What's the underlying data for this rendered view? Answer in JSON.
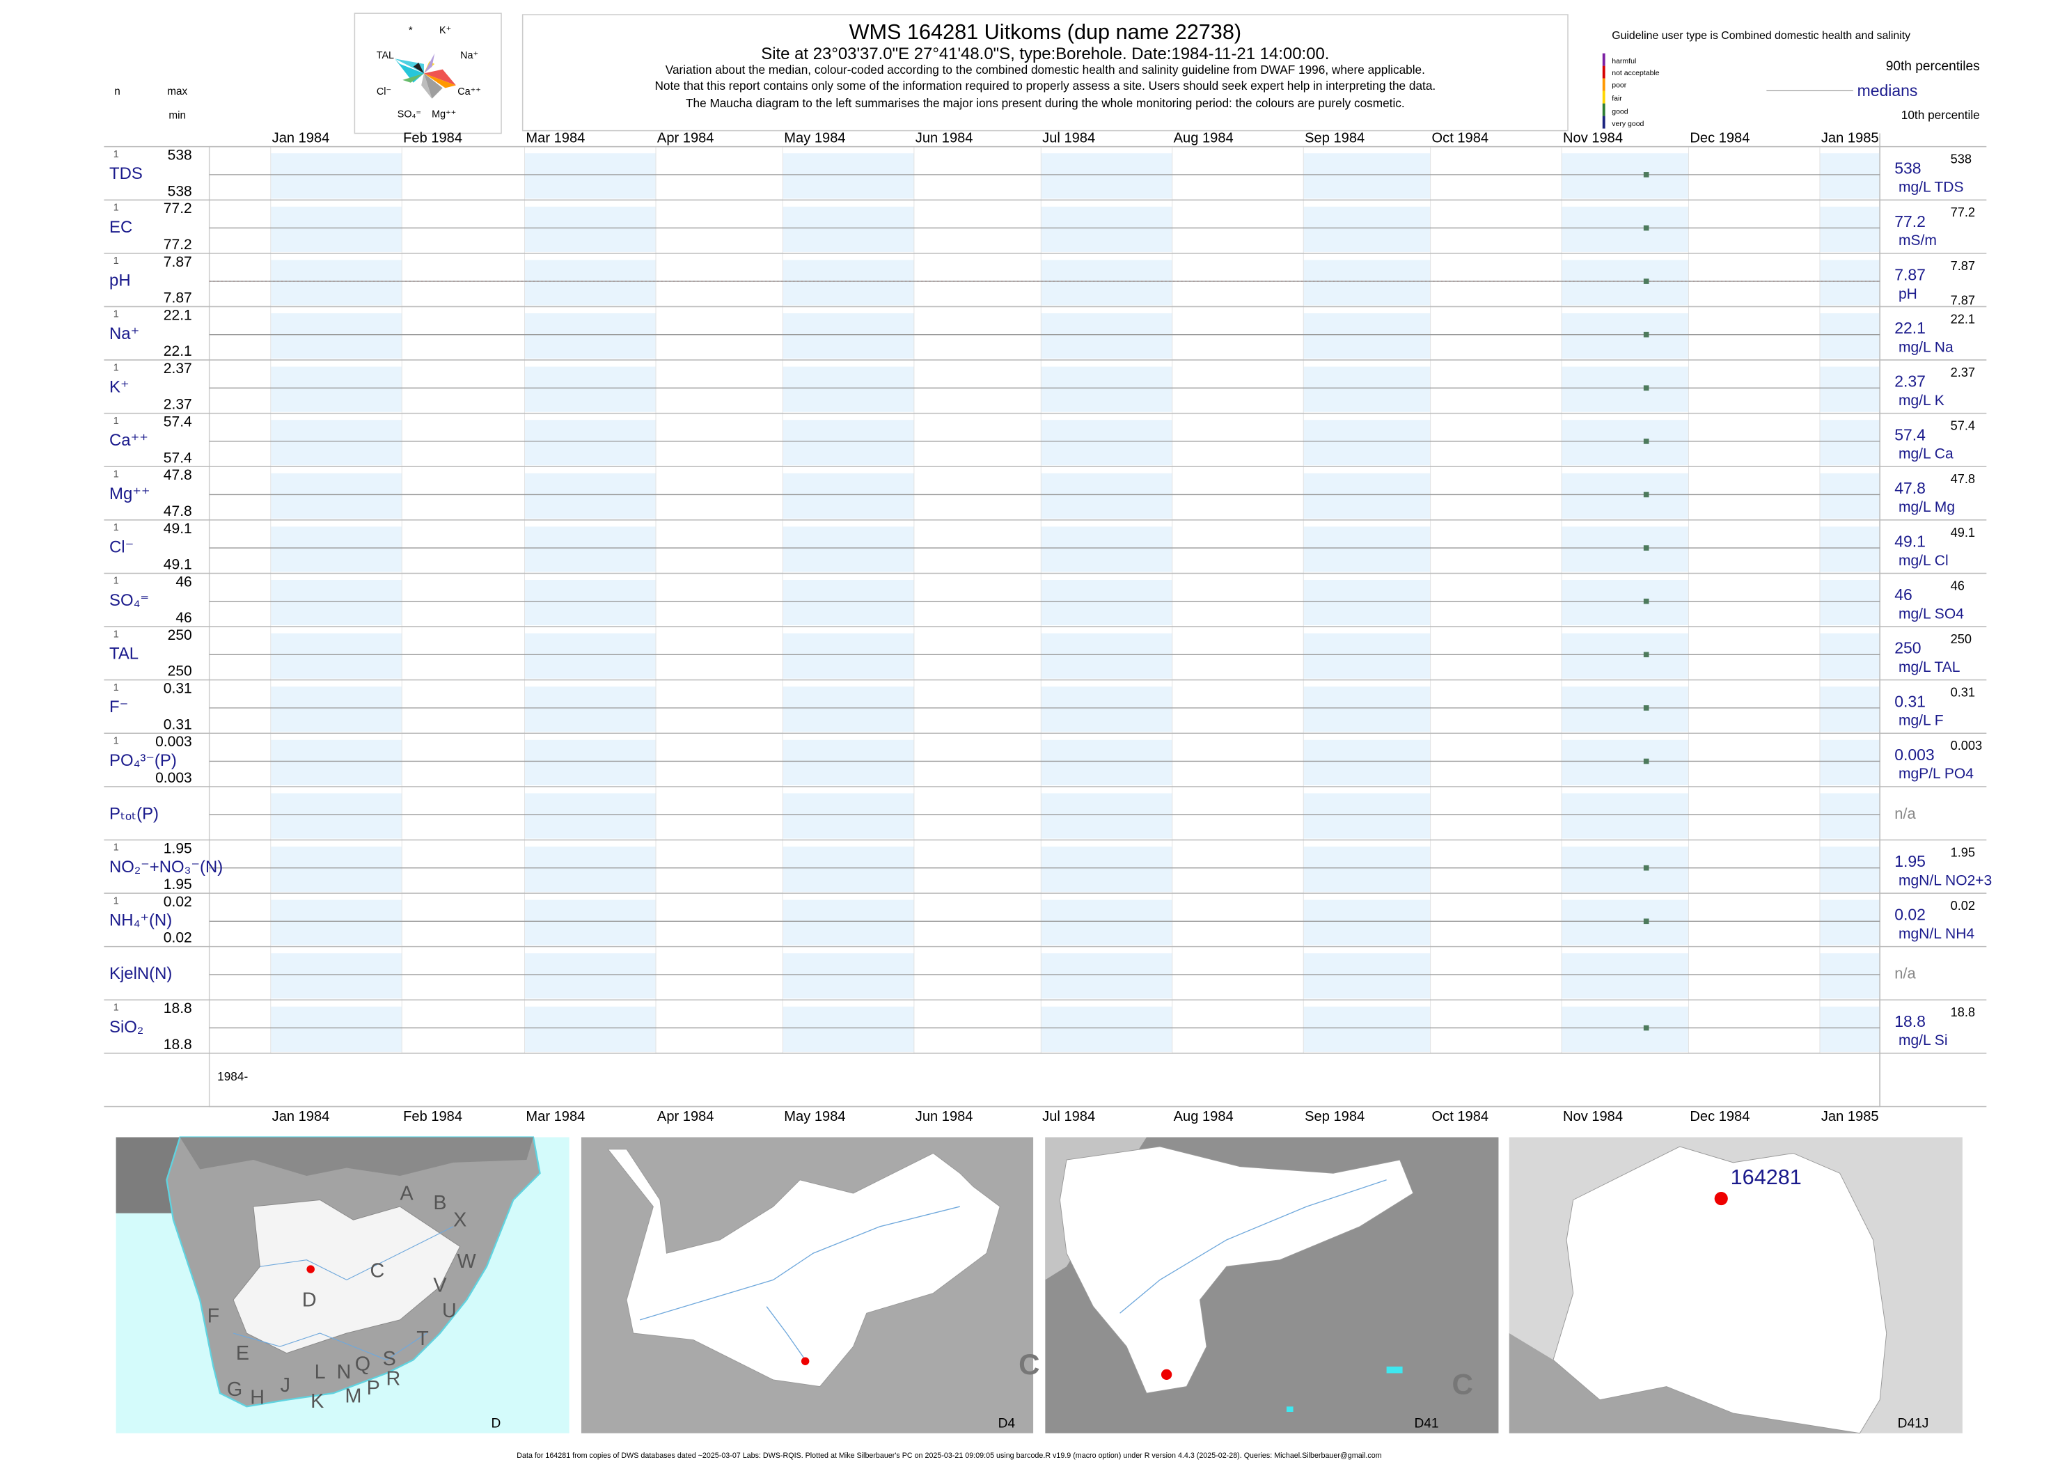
{
  "header": {
    "title": "WMS 164281  Uitkoms (dup name 22738)",
    "site": "Site at 23°03'37.0\"E 27°41'48.0\"S, type:Borehole. Date:1984-11-21 14:00:00.",
    "lines": [
      "Variation about the median,  colour-coded according to the combined domestic health and salinity guideline from DWAF 1996, where applicable.",
      "Note that this report contains only some of the information required to properly assess a site. Users should seek expert help in interpreting the data.",
      "The Maucha diagram to the left summarises the major ions present during the whole monitoring period: the colours are purely cosmetic."
    ]
  },
  "maucha": {
    "labels": [
      "*",
      "K⁺",
      "TAL",
      "Na⁺",
      "Cl⁻",
      "Ca⁺⁺",
      "SO₄⁼",
      "Mg⁺⁺"
    ]
  },
  "column_heads": {
    "n": "n",
    "max": "max",
    "min": "min"
  },
  "legend": {
    "guideline": "Guideline user type is Combined domestic health and salinity",
    "classes": [
      "harmful",
      "not acceptable",
      "poor",
      "fair",
      "good",
      "very good"
    ],
    "p90": "90th percentiles",
    "median": "medians",
    "p10": "10th percentile"
  },
  "time_axis": {
    "ticks": [
      {
        "value": "1984-01",
        "label": "Jan 1984"
      },
      {
        "value": "1984-02",
        "label": "Feb 1984"
      },
      {
        "value": "1984-03",
        "label": "Mar 1984"
      },
      {
        "value": "1984-04",
        "label": "Apr 1984"
      },
      {
        "value": "1984-05",
        "label": "May 1984"
      },
      {
        "value": "1984-06",
        "label": "Jun 1984"
      },
      {
        "value": "1984-07",
        "label": "Jul 1984"
      },
      {
        "value": "1984-08",
        "label": "Aug 1984"
      },
      {
        "value": "1984-09",
        "label": "Sep 1984"
      },
      {
        "value": "1984-10",
        "label": "Oct 1984"
      },
      {
        "value": "1984-11",
        "label": "Nov 1984"
      },
      {
        "value": "1984-12",
        "label": "Dec 1984"
      },
      {
        "value": "1985-01",
        "label": "Jan 1985"
      }
    ],
    "start_label": "1984-"
  },
  "chart_data": [
    {
      "type": "scatter",
      "label": "TDS",
      "n": 1,
      "max": 538,
      "min": 538,
      "median": 538,
      "p90": 538,
      "unit": "mg/L TDS",
      "x": [
        "1984-11-21"
      ],
      "values": [
        538
      ]
    },
    {
      "type": "scatter",
      "label": "EC",
      "n": 1,
      "max": 77.2,
      "min": 77.2,
      "median": 77.2,
      "p90": 77.2,
      "unit": "mS/m",
      "x": [
        "1984-11-21"
      ],
      "values": [
        77.2
      ]
    },
    {
      "type": "scatter",
      "label": "pH",
      "n": 1,
      "max": 7.87,
      "min": 7.87,
      "median": 7.87,
      "p90": 7.87,
      "p10": 7.87,
      "unit": "pH",
      "x": [
        "1984-11-21"
      ],
      "values": [
        7.87
      ]
    },
    {
      "type": "scatter",
      "label": "Na⁺",
      "n": 1,
      "max": 22.1,
      "min": 22.1,
      "median": 22.1,
      "p90": 22.1,
      "unit": "mg/L Na",
      "x": [
        "1984-11-21"
      ],
      "values": [
        22.1
      ]
    },
    {
      "type": "scatter",
      "label": "K⁺",
      "n": 1,
      "max": 2.37,
      "min": 2.37,
      "median": 2.37,
      "p90": 2.37,
      "unit": "mg/L K",
      "x": [
        "1984-11-21"
      ],
      "values": [
        2.37
      ]
    },
    {
      "type": "scatter",
      "label": "Ca⁺⁺",
      "n": 1,
      "max": 57.4,
      "min": 57.4,
      "median": 57.4,
      "p90": 57.4,
      "unit": "mg/L Ca",
      "x": [
        "1984-11-21"
      ],
      "values": [
        57.4
      ]
    },
    {
      "type": "scatter",
      "label": "Mg⁺⁺",
      "n": 1,
      "max": 47.8,
      "min": 47.8,
      "median": 47.8,
      "p90": 47.8,
      "unit": "mg/L Mg",
      "x": [
        "1984-11-21"
      ],
      "values": [
        47.8
      ]
    },
    {
      "type": "scatter",
      "label": "Cl⁻",
      "n": 1,
      "max": 49.1,
      "min": 49.1,
      "median": 49.1,
      "p90": 49.1,
      "unit": "mg/L Cl",
      "x": [
        "1984-11-21"
      ],
      "values": [
        49.1
      ]
    },
    {
      "type": "scatter",
      "label": "SO₄⁼",
      "n": 1,
      "max": 46,
      "min": 46,
      "median": 46,
      "p90": 46,
      "unit": "mg/L SO4",
      "x": [
        "1984-11-21"
      ],
      "values": [
        46
      ]
    },
    {
      "type": "scatter",
      "label": "TAL",
      "n": 1,
      "max": 250,
      "min": 250,
      "median": 250,
      "p90": 250,
      "unit": "mg/L TAL",
      "x": [
        "1984-11-21"
      ],
      "values": [
        250
      ]
    },
    {
      "type": "scatter",
      "label": "F⁻",
      "n": 1,
      "max": 0.31,
      "min": 0.31,
      "median": 0.31,
      "p90": 0.31,
      "unit": "mg/L F",
      "x": [
        "1984-11-21"
      ],
      "values": [
        0.31
      ]
    },
    {
      "type": "scatter",
      "label": "PO₄³⁻(P)",
      "n": 1,
      "max": 0.003,
      "min": 0.003,
      "median": 0.003,
      "p90": 0.003,
      "unit": "mgP/L PO4",
      "x": [
        "1984-11-21"
      ],
      "values": [
        0.003
      ]
    },
    {
      "type": "scatter",
      "label": "Pₜₒₜ(P)",
      "status": "n/a",
      "x": [],
      "values": []
    },
    {
      "type": "scatter",
      "label": "NO₂⁻+NO₃⁻(N)",
      "n": 1,
      "max": 1.95,
      "min": 1.95,
      "median": 1.95,
      "p90": 1.95,
      "unit": "mgN/L NO2+3",
      "x": [
        "1984-11-21"
      ],
      "values": [
        1.95
      ]
    },
    {
      "type": "scatter",
      "label": "NH₄⁺(N)",
      "n": 1,
      "max": 0.02,
      "min": 0.02,
      "median": 0.02,
      "p90": 0.02,
      "unit": "mgN/L NH4",
      "x": [
        "1984-11-21"
      ],
      "values": [
        0.02
      ]
    },
    {
      "type": "scatter",
      "label": "KjelN(N)",
      "status": "n/a",
      "x": [],
      "values": []
    },
    {
      "type": "scatter",
      "label": "SiO₂",
      "n": 1,
      "max": 18.8,
      "min": 18.8,
      "median": 18.8,
      "p90": 18.8,
      "unit": "mg/L Si",
      "x": [
        "1984-11-21"
      ],
      "values": [
        18.8
      ]
    }
  ],
  "maps": [
    {
      "label": "D",
      "letters": [
        "A",
        "B",
        "X",
        "W",
        "C",
        "V",
        "U",
        "D",
        "F",
        "E",
        "T",
        "G",
        "H",
        "J",
        "K",
        "L",
        "N",
        "Q",
        "M",
        "P",
        "S",
        "R"
      ]
    },
    {
      "label": "D4",
      "letters": [
        "C"
      ]
    },
    {
      "label": "D41",
      "letters": [
        "C"
      ]
    },
    {
      "label": "D41J",
      "site": "164281"
    }
  ],
  "footer": "Data for 164281 from copies of DWS databases dated ~2025-03-07 Labs: DWS-RQIS. Plotted at Mike Silberbauer's PC on 2025-03-21 09:09:05 using barcode.R v19.9 (macro option) under R version 4.4.3 (2025-02-28). Queries: Michael.Silberbauer@gmail.com"
}
